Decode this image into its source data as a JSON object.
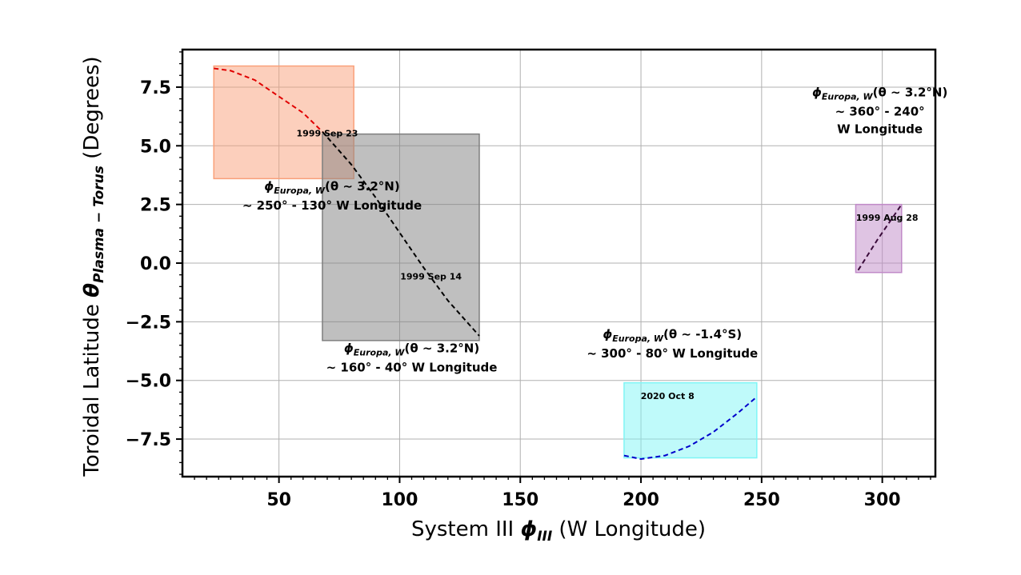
{
  "chart_data": {
    "type": "line",
    "xlabel_pre": "System III ",
    "xlabel_sym": "ϕ",
    "xlabel_sub": "III",
    "xlabel_post": " (W Longitude)",
    "ylabel_pre": "Toroidal Latitude ",
    "ylabel_sym": "θ",
    "ylabel_sub": "Plasma − Torus",
    "ylabel_post": " (Degrees)",
    "xlim": [
      10,
      322
    ],
    "ylim": [
      -9.1,
      9.1
    ],
    "xticks": [
      50,
      100,
      150,
      200,
      250,
      300
    ],
    "xtick_labels": [
      "50",
      "100",
      "150",
      "200",
      "250",
      "300"
    ],
    "yticks": [
      -7.5,
      -5.0,
      -2.5,
      0.0,
      2.5,
      5.0,
      7.5
    ],
    "ytick_labels": [
      "−7.5",
      "−5.0",
      "−2.5",
      "0.0",
      "2.5",
      "5.0",
      "7.5"
    ],
    "grid": true,
    "series": [
      {
        "name": "1999 Sep 23",
        "color": "#e00000",
        "rect_color": "#f9a07a",
        "x": [
          23,
          30,
          40,
          50,
          60,
          68
        ],
        "y": [
          8.3,
          8.2,
          7.8,
          7.1,
          6.4,
          5.6
        ],
        "rect": {
          "x": [
            23,
            81
          ],
          "y": [
            3.6,
            8.4
          ]
        }
      },
      {
        "name": "1999 Sep 14",
        "color": "#000000",
        "rect_color": "#7f7f7f",
        "x": [
          68,
          80,
          90,
          100,
          110,
          120,
          133
        ],
        "y": [
          5.6,
          4.2,
          2.8,
          1.3,
          -0.2,
          -1.6,
          -3.1
        ],
        "rect": {
          "x": [
            68,
            133
          ],
          "y": [
            -3.3,
            5.5
          ]
        }
      },
      {
        "name": "2020 Oct 8",
        "color": "#0000cc",
        "rect_color": "#7ff5f5",
        "x": [
          193,
          200,
          210,
          220,
          230,
          240,
          248
        ],
        "y": [
          -8.2,
          -8.35,
          -8.2,
          -7.8,
          -7.2,
          -6.4,
          -5.7
        ],
        "rect": {
          "x": [
            193,
            248
          ],
          "y": [
            -8.3,
            -5.1
          ]
        }
      },
      {
        "name": "1999 Aug 28",
        "color": "#3a0a3a",
        "rect_color": "#c08ac8",
        "x": [
          290,
          298,
          308
        ],
        "y": [
          -0.3,
          1.0,
          2.5
        ],
        "rect": {
          "x": [
            289,
            308
          ],
          "y": [
            -0.4,
            2.5
          ]
        }
      }
    ],
    "annotations": [
      {
        "id": "a1",
        "line1_sym": "ϕ",
        "line1_sub": "Europa, W",
        "line1_rest": "(θ ∼  3.2°N)",
        "line2": "∼  250° - 130° W Longitude",
        "line3": ""
      },
      {
        "id": "a2",
        "line1_sym": "ϕ",
        "line1_sub": "Europa, W",
        "line1_rest": "(θ ∼  3.2°N)",
        "line2": "∼  160° - 40° W Longitude",
        "line3": ""
      },
      {
        "id": "a3",
        "line1_sym": "ϕ",
        "line1_sub": "Europa, W",
        "line1_rest": "(θ ∼  -1.4°S)",
        "line2": "∼  300° - 80° W Longitude",
        "line3": ""
      },
      {
        "id": "a4",
        "line1_sym": "ϕ",
        "line1_sub": "Europa, W",
        "line1_rest": "(θ ∼  3.2°N)",
        "line2": "∼  360° - 240°",
        "line3": "W Longitude"
      }
    ]
  }
}
